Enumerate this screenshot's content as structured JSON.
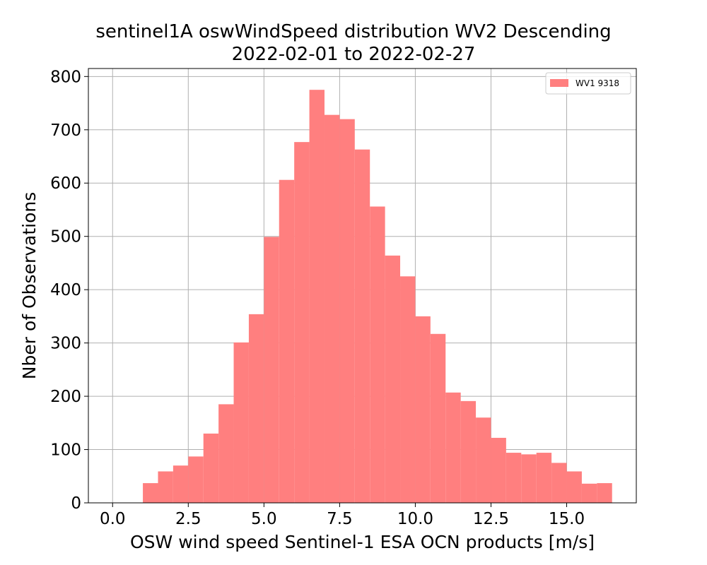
{
  "chart_data": {
    "type": "bar",
    "title": "sentinel1A oswWindSpeed distribution WV2 Descending",
    "subtitle": "2022-02-01 to 2022-02-27",
    "xlabel": "OSW wind speed Sentinel-1 ESA OCN products [m/s]",
    "ylabel": "Nber of Observations",
    "xlim": [
      -0.8,
      17.3
    ],
    "ylim": [
      0,
      815
    ],
    "xticks": [
      "0.0",
      "2.5",
      "5.0",
      "7.5",
      "10.0",
      "12.5",
      "15.0"
    ],
    "xtick_values": [
      0,
      2.5,
      5,
      7.5,
      10,
      12.5,
      15
    ],
    "yticks": [
      "0",
      "100",
      "200",
      "300",
      "400",
      "500",
      "600",
      "700",
      "800"
    ],
    "ytick_values": [
      0,
      100,
      200,
      300,
      400,
      500,
      600,
      700,
      800
    ],
    "grid": true,
    "legend_position": "top-right",
    "bin_width": 0.5,
    "bin_starts": [
      1.0,
      1.5,
      2.0,
      2.5,
      3.0,
      3.5,
      4.0,
      4.5,
      5.0,
      5.5,
      6.0,
      6.5,
      7.0,
      7.5,
      8.0,
      8.5,
      9.0,
      9.5,
      10.0,
      10.5,
      11.0,
      11.5,
      12.0,
      12.5,
      13.0,
      13.5,
      14.0,
      14.5,
      15.0,
      15.5,
      16.0
    ],
    "series": [
      {
        "name": "WV1 9318",
        "color": "#ff7f7f",
        "values": [
          37,
          59,
          70,
          87,
          130,
          185,
          301,
          354,
          499,
          606,
          677,
          775,
          728,
          720,
          663,
          556,
          464,
          425,
          350,
          317,
          207,
          191,
          160,
          122,
          94,
          91,
          94,
          75,
          59,
          36,
          37
        ]
      }
    ]
  }
}
